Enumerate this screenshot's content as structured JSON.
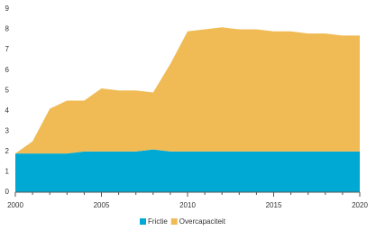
{
  "chart_data": {
    "type": "stacked_area",
    "x": [
      2000,
      2001,
      2002,
      2003,
      2004,
      2005,
      2006,
      2007,
      2008,
      2009,
      2010,
      2011,
      2012,
      2013,
      2014,
      2015,
      2016,
      2017,
      2018,
      2019,
      2020
    ],
    "series": [
      {
        "name": "Frictie",
        "color": "#00a9d4",
        "values": [
          1.9,
          1.9,
          1.9,
          1.9,
          2.0,
          2.0,
          2.0,
          2.0,
          2.1,
          2.0,
          2.0,
          2.0,
          2.0,
          2.0,
          2.0,
          2.0,
          2.0,
          2.0,
          2.0,
          2.0,
          2.0
        ]
      },
      {
        "name": "Overcapaciteit",
        "color": "#f0bb55",
        "values": [
          0,
          0.6,
          2.2,
          2.6,
          2.5,
          3.1,
          3.0,
          3.0,
          2.8,
          4.3,
          5.9,
          6.0,
          6.1,
          6.0,
          6.0,
          5.9,
          5.9,
          5.8,
          5.8,
          5.7,
          5.7
        ]
      }
    ],
    "xlim": [
      2000,
      2020
    ],
    "xticks": [
      2000,
      2005,
      2010,
      2015,
      2020
    ],
    "ylim": [
      0,
      9
    ],
    "yticks": [
      0,
      1,
      2,
      3,
      4,
      5,
      6,
      7,
      8,
      9
    ],
    "legend": "bottom"
  }
}
